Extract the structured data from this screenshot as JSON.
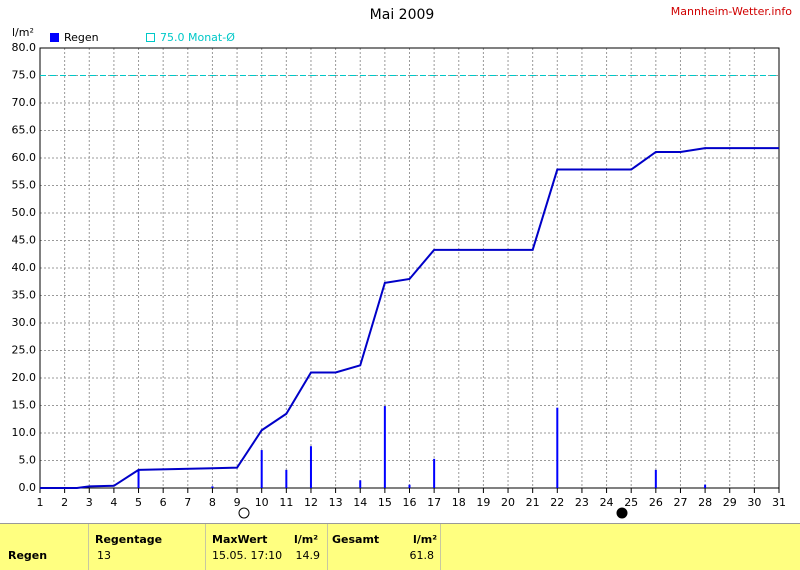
{
  "chart_data": {
    "type": "bar",
    "title": "Mai 2009",
    "source": "Mannheim-Wetter.info",
    "ylabel": "l/m²",
    "xlim": [
      1,
      31
    ],
    "xticks": [
      1,
      2,
      3,
      4,
      5,
      6,
      7,
      8,
      9,
      10,
      11,
      12,
      13,
      14,
      15,
      16,
      17,
      18,
      19,
      20,
      21,
      22,
      23,
      24,
      25,
      26,
      27,
      28,
      29,
      30,
      31
    ],
    "ylim": [
      0,
      80
    ],
    "yticks": [
      {
        "value": 0,
        "label": "0.0"
      },
      {
        "value": 5,
        "label": "5.0"
      },
      {
        "value": 10,
        "label": "10.0"
      },
      {
        "value": 15,
        "label": "15.0"
      },
      {
        "value": 20,
        "label": "20.0"
      },
      {
        "value": 25,
        "label": "25.0"
      },
      {
        "value": 30,
        "label": "30.0"
      },
      {
        "value": 35,
        "label": "35.0"
      },
      {
        "value": 40,
        "label": "40.0"
      },
      {
        "value": 45,
        "label": "45.0"
      },
      {
        "value": 50,
        "label": "50.0"
      },
      {
        "value": 55,
        "label": "55.0"
      },
      {
        "value": 60,
        "label": "60.0"
      },
      {
        "value": 65,
        "label": "65.0"
      },
      {
        "value": 70,
        "label": "70.0"
      },
      {
        "value": 75,
        "label": "75.0"
      },
      {
        "value": 80,
        "label": "80.0"
      }
    ],
    "grid": true,
    "series": [
      {
        "name": "Regen",
        "color": "#0000ff",
        "x": [
          5,
          8,
          10,
          11,
          12,
          14,
          15,
          16,
          17,
          22,
          26,
          28
        ],
        "values": [
          3.2,
          0.3,
          6.9,
          3.3,
          7.6,
          1.4,
          14.9,
          0.6,
          5.3,
          14.6,
          3.3,
          0.6
        ]
      }
    ],
    "cumulative": {
      "color": "#0000c8",
      "x": [
        1,
        2.5,
        3,
        4,
        5,
        8,
        9,
        10,
        11,
        12,
        13,
        14,
        15,
        16,
        17,
        21,
        22,
        25,
        26,
        27,
        28,
        31
      ],
      "values": [
        0,
        0,
        0.3,
        0.4,
        3.3,
        3.6,
        3.7,
        10.5,
        13.5,
        21,
        21,
        22.3,
        37.3,
        38,
        43.3,
        43.3,
        57.9,
        57.9,
        61.1,
        61.1,
        61.8,
        61.8
      ]
    },
    "reference_line": {
      "value": 75,
      "label": "75.0 Monat-Ø",
      "color": "#00c8c8"
    }
  },
  "table": {
    "columns": [
      "Regentage",
      "MaxWert",
      "l/m²",
      "Gesamt",
      "l/m²"
    ],
    "rows": [
      [
        "Regen",
        "13",
        "15.05. 17:10",
        "14.9",
        "61.8"
      ]
    ]
  }
}
